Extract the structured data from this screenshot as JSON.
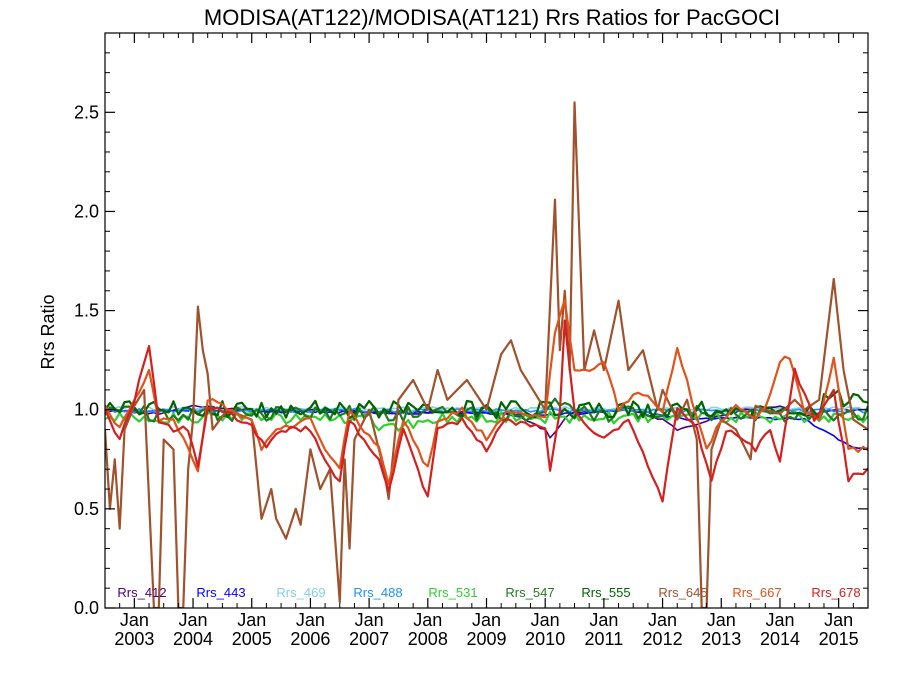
{
  "chart_data": {
    "type": "line",
    "title": "MODISA(AT122)/MODISA(AT121)  Rrs Ratios for PacGOCI",
    "ylabel": "Rrs Ratio",
    "xlabel": "",
    "ylim": [
      0,
      2.9
    ],
    "y_ticks": [
      0.0,
      0.5,
      1.0,
      1.5,
      2.0,
      2.5
    ],
    "y_tick_labels": [
      "0.0",
      "0.5",
      "1.0",
      "1.5",
      "2.0",
      "2.5"
    ],
    "xlim": [
      "2002-07",
      "2015-07"
    ],
    "x_ticks": [
      "2003-01",
      "2004-01",
      "2005-01",
      "2006-01",
      "2007-01",
      "2008-01",
      "2009-01",
      "2010-01",
      "2011-01",
      "2012-01",
      "2013-01",
      "2014-01",
      "2015-01"
    ],
    "x_tick_month": "Jan",
    "x_tick_years": [
      "2003",
      "2004",
      "2005",
      "2006",
      "2007",
      "2008",
      "2009",
      "2010",
      "2011",
      "2012",
      "2013",
      "2014",
      "2015"
    ],
    "grid": false,
    "legend_position": "bottom",
    "series": [
      {
        "name": "Rrs_412",
        "color": "#4b0082",
        "kind": "s412",
        "key_points": [
          [
            "2002-07",
            1.0
          ],
          [
            "2003-06",
            0.98
          ],
          [
            "2004-01",
            1.02
          ],
          [
            "2005-06",
            0.99
          ],
          [
            "2006-06",
            1.0
          ],
          [
            "2007-06",
            0.98
          ],
          [
            "2008-06",
            0.99
          ],
          [
            "2009-06",
            0.98
          ],
          [
            "2010-01",
            0.9
          ],
          [
            "2010-02",
            0.86
          ],
          [
            "2010-06",
            0.98
          ],
          [
            "2011-06",
            1.0
          ],
          [
            "2012-01",
            0.95
          ],
          [
            "2012-04",
            0.9
          ],
          [
            "2013-01",
            0.97
          ],
          [
            "2013-06",
            1.0
          ],
          [
            "2014-01",
            1.02
          ],
          [
            "2014-06",
            0.97
          ],
          [
            "2015-01",
            1.0
          ],
          [
            "2015-07",
            1.0
          ]
        ]
      },
      {
        "name": "Rrs_443",
        "color": "#0000ff",
        "kind": "s443",
        "key_points": [
          [
            "2002-07",
            0.99
          ],
          [
            "2004-01",
            1.0
          ],
          [
            "2006-01",
            0.99
          ],
          [
            "2008-01",
            0.99
          ],
          [
            "2010-01",
            0.97
          ],
          [
            "2011-06",
            1.0
          ],
          [
            "2012-06",
            0.95
          ],
          [
            "2013-06",
            0.96
          ],
          [
            "2014-06",
            0.95
          ],
          [
            "2015-03",
            0.82
          ],
          [
            "2015-07",
            0.8
          ]
        ]
      },
      {
        "name": "Rrs_469",
        "color": "#87ceeb",
        "kind": "flat",
        "base": 1.005
      },
      {
        "name": "Rrs_488",
        "color": "#1e90ff",
        "kind": "flat",
        "base": 0.995
      },
      {
        "name": "Rrs_531",
        "color": "#32cd32",
        "kind": "s531"
      },
      {
        "name": "Rrs_547",
        "color": "#1f7a1f",
        "kind": "s547"
      },
      {
        "name": "Rrs_555",
        "color": "#006400",
        "kind": "s555"
      },
      {
        "name": "Rrs_645",
        "color": "#a0522d",
        "kind": "s645",
        "key_points": [
          [
            "2002-07",
            0.9
          ],
          [
            "2002-08",
            0.5
          ],
          [
            "2002-09",
            0.75
          ],
          [
            "2002-10",
            0.4
          ],
          [
            "2002-11",
            0.9
          ],
          [
            "2003-01",
            1.02
          ],
          [
            "2003-03",
            1.1
          ],
          [
            "2003-05",
            0.0
          ],
          [
            "2003-06",
            0.0
          ],
          [
            "2003-07",
            0.85
          ],
          [
            "2003-09",
            0.8
          ],
          [
            "2003-10",
            0.0
          ],
          [
            "2003-11",
            0.0
          ],
          [
            "2003-12",
            0.7
          ],
          [
            "2004-01",
            0.95
          ],
          [
            "2004-02",
            1.52
          ],
          [
            "2004-03",
            1.3
          ],
          [
            "2004-04",
            1.18
          ],
          [
            "2004-05",
            0.9
          ],
          [
            "2004-08",
            1.0
          ],
          [
            "2005-01",
            0.95
          ],
          [
            "2005-03",
            0.45
          ],
          [
            "2005-05",
            0.6
          ],
          [
            "2005-06",
            0.45
          ],
          [
            "2005-08",
            0.35
          ],
          [
            "2005-10",
            0.5
          ],
          [
            "2005-11",
            0.42
          ],
          [
            "2006-01",
            0.8
          ],
          [
            "2006-03",
            0.6
          ],
          [
            "2006-05",
            0.7
          ],
          [
            "2006-07",
            0.03
          ],
          [
            "2006-08",
            0.75
          ],
          [
            "2006-09",
            0.3
          ],
          [
            "2006-10",
            0.85
          ],
          [
            "2007-01",
            1.0
          ],
          [
            "2007-04",
            0.7
          ],
          [
            "2007-05",
            0.55
          ],
          [
            "2007-07",
            1.05
          ],
          [
            "2007-10",
            1.15
          ],
          [
            "2008-01",
            1.0
          ],
          [
            "2008-03",
            1.2
          ],
          [
            "2008-05",
            1.05
          ],
          [
            "2008-07",
            1.1
          ],
          [
            "2008-09",
            1.15
          ],
          [
            "2009-01",
            1.0
          ],
          [
            "2009-04",
            1.28
          ],
          [
            "2009-06",
            1.35
          ],
          [
            "2009-08",
            1.2
          ],
          [
            "2010-01",
            1.0
          ],
          [
            "2010-03",
            2.06
          ],
          [
            "2010-04",
            1.3
          ],
          [
            "2010-05",
            1.6
          ],
          [
            "2010-06",
            1.2
          ],
          [
            "2010-07",
            2.55
          ],
          [
            "2010-09",
            1.2
          ],
          [
            "2010-11",
            1.4
          ],
          [
            "2011-01",
            1.2
          ],
          [
            "2011-04",
            1.55
          ],
          [
            "2011-06",
            1.2
          ],
          [
            "2011-09",
            1.3
          ],
          [
            "2011-12",
            1.0
          ],
          [
            "2012-01",
            1.1
          ],
          [
            "2012-04",
            0.95
          ],
          [
            "2012-06",
            1.05
          ],
          [
            "2012-08",
            0.85
          ],
          [
            "2012-09",
            0.0
          ],
          [
            "2012-10",
            0.0
          ],
          [
            "2012-11",
            0.8
          ],
          [
            "2013-01",
            0.95
          ],
          [
            "2013-04",
            0.9
          ],
          [
            "2013-05",
            0.85
          ],
          [
            "2013-07",
            0.75
          ],
          [
            "2013-08",
            1.02
          ],
          [
            "2013-10",
            1.0
          ],
          [
            "2014-01",
            0.98
          ],
          [
            "2014-04",
            1.05
          ],
          [
            "2014-06",
            1.0
          ],
          [
            "2014-09",
            1.05
          ],
          [
            "2014-12",
            1.66
          ],
          [
            "2015-02",
            1.2
          ],
          [
            "2015-04",
            0.95
          ],
          [
            "2015-07",
            0.9
          ]
        ]
      },
      {
        "name": "Rrs_667",
        "color": "#e2521b",
        "kind": "s667",
        "key_points": [
          [
            "2002-07",
            1.02
          ],
          [
            "2002-10",
            0.9
          ],
          [
            "2003-01",
            1.05
          ],
          [
            "2003-04",
            1.2
          ],
          [
            "2003-06",
            0.95
          ],
          [
            "2003-09",
            0.95
          ],
          [
            "2003-12",
            0.8
          ],
          [
            "2004-02",
            0.7
          ],
          [
            "2004-04",
            1.05
          ],
          [
            "2005-01",
            0.95
          ],
          [
            "2005-03",
            0.8
          ],
          [
            "2005-06",
            0.9
          ],
          [
            "2006-01",
            0.95
          ],
          [
            "2006-04",
            0.8
          ],
          [
            "2006-07",
            0.7
          ],
          [
            "2006-09",
            1.0
          ],
          [
            "2007-03",
            0.8
          ],
          [
            "2007-05",
            0.62
          ],
          [
            "2007-08",
            0.95
          ],
          [
            "2008-01",
            0.7
          ],
          [
            "2008-03",
            0.95
          ],
          [
            "2008-08",
            1.0
          ],
          [
            "2009-01",
            0.85
          ],
          [
            "2009-05",
            1.0
          ],
          [
            "2010-01",
            0.95
          ],
          [
            "2010-03",
            1.4
          ],
          [
            "2010-05",
            1.55
          ],
          [
            "2010-07",
            1.2
          ],
          [
            "2010-10",
            1.2
          ],
          [
            "2011-01",
            1.25
          ],
          [
            "2011-04",
            1.0
          ],
          [
            "2011-08",
            1.1
          ],
          [
            "2012-01",
            1.0
          ],
          [
            "2012-04",
            1.32
          ],
          [
            "2012-07",
            1.05
          ],
          [
            "2012-10",
            0.8
          ],
          [
            "2013-01",
            0.95
          ],
          [
            "2013-04",
            1.02
          ],
          [
            "2013-08",
            0.95
          ],
          [
            "2013-10",
            1.0
          ],
          [
            "2014-01",
            1.25
          ],
          [
            "2014-03",
            1.26
          ],
          [
            "2014-06",
            1.0
          ],
          [
            "2014-09",
            0.95
          ],
          [
            "2014-12",
            1.25
          ],
          [
            "2015-03",
            0.8
          ],
          [
            "2015-07",
            0.8
          ]
        ]
      },
      {
        "name": "Rrs_678",
        "color": "#d42020",
        "kind": "s678",
        "key_points": [
          [
            "2002-07",
            1.0
          ],
          [
            "2002-10",
            0.85
          ],
          [
            "2003-01",
            1.05
          ],
          [
            "2003-04",
            1.33
          ],
          [
            "2003-06",
            0.95
          ],
          [
            "2003-09",
            0.9
          ],
          [
            "2003-12",
            0.9
          ],
          [
            "2004-02",
            0.7
          ],
          [
            "2004-04",
            1.02
          ],
          [
            "2005-01",
            0.92
          ],
          [
            "2005-04",
            0.8
          ],
          [
            "2005-07",
            0.9
          ],
          [
            "2006-01",
            0.9
          ],
          [
            "2006-05",
            0.7
          ],
          [
            "2006-07",
            0.65
          ],
          [
            "2006-09",
            0.95
          ],
          [
            "2007-03",
            0.75
          ],
          [
            "2007-05",
            0.58
          ],
          [
            "2007-08",
            0.9
          ],
          [
            "2008-01",
            0.55
          ],
          [
            "2008-03",
            0.9
          ],
          [
            "2008-08",
            0.95
          ],
          [
            "2009-01",
            0.8
          ],
          [
            "2009-05",
            0.95
          ],
          [
            "2010-01",
            0.9
          ],
          [
            "2010-02",
            0.7
          ],
          [
            "2010-04",
            1.0
          ],
          [
            "2010-05",
            1.45
          ],
          [
            "2010-07",
            1.0
          ],
          [
            "2010-10",
            0.9
          ],
          [
            "2011-01",
            0.85
          ],
          [
            "2011-06",
            0.95
          ],
          [
            "2012-01",
            0.55
          ],
          [
            "2012-04",
            1.0
          ],
          [
            "2012-08",
            0.9
          ],
          [
            "2012-11",
            0.65
          ],
          [
            "2013-02",
            0.9
          ],
          [
            "2013-05",
            0.85
          ],
          [
            "2013-08",
            0.8
          ],
          [
            "2013-11",
            0.9
          ],
          [
            "2014-01",
            0.75
          ],
          [
            "2014-04",
            1.2
          ],
          [
            "2014-08",
            0.95
          ],
          [
            "2014-12",
            1.1
          ],
          [
            "2015-03",
            0.65
          ],
          [
            "2015-07",
            0.7
          ]
        ]
      }
    ]
  }
}
